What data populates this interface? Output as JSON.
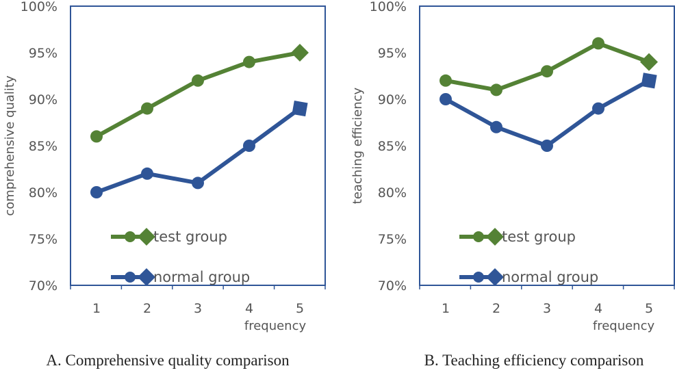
{
  "colors": {
    "test": "#548235",
    "normal": "#2f5597",
    "frame": "#2f5597",
    "text": "#555555"
  },
  "chart_data": [
    {
      "type": "line",
      "caption": "A. Comprehensive quality comparison",
      "xlabel": "frequency",
      "ylabel": "comprehensive quality",
      "categories": [
        "1",
        "2",
        "3",
        "4",
        "5"
      ],
      "ylim": [
        70,
        100
      ],
      "yticks": [
        "70%",
        "75%",
        "80%",
        "85%",
        "90%",
        "95%",
        "100%"
      ],
      "legend": [
        "test group",
        "normal group"
      ],
      "series": [
        {
          "name": "test group",
          "values": [
            86,
            89,
            92,
            94,
            95
          ]
        },
        {
          "name": "normal group",
          "values": [
            80,
            82,
            81,
            85,
            89
          ]
        }
      ]
    },
    {
      "type": "line",
      "caption": "B. Teaching efficiency comparison",
      "xlabel": "frequency",
      "ylabel": "teaching efficiency",
      "categories": [
        "1",
        "2",
        "3",
        "4",
        "5"
      ],
      "ylim": [
        70,
        100
      ],
      "yticks": [
        "70%",
        "75%",
        "80%",
        "85%",
        "90%",
        "95%",
        "100%"
      ],
      "legend": [
        "test group",
        "normal group"
      ],
      "series": [
        {
          "name": "test group",
          "values": [
            92,
            91,
            93,
            96,
            94
          ]
        },
        {
          "name": "normal group",
          "values": [
            90,
            87,
            85,
            89,
            92
          ]
        }
      ]
    }
  ]
}
